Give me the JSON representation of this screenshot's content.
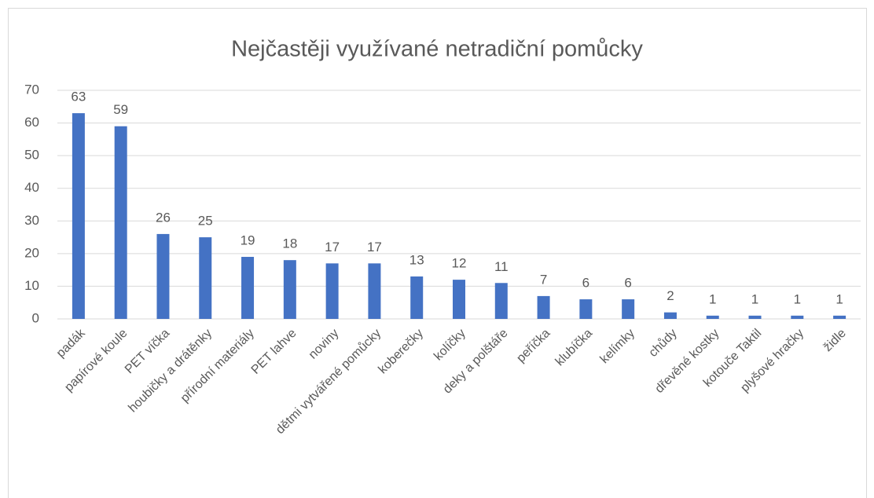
{
  "chart_data": {
    "type": "bar",
    "title": "Nejčastěji využívané netradiční pomůcky",
    "categories": [
      "padák",
      "papírové koule",
      "PET víčka",
      "houbičky a drátěnky",
      "přírodní materiály",
      "PET lahve",
      "noviny",
      "dětmi vytvářené pomůcky",
      "koberečky",
      "kolíčky",
      "deky a polštáře",
      "peříčka",
      "klubíčka",
      "kelímky",
      "chůdy",
      "dřevěné kostky",
      "kotouče Taktil",
      "plyšové hračky",
      "židle"
    ],
    "values": [
      63,
      59,
      26,
      25,
      19,
      18,
      17,
      17,
      13,
      12,
      11,
      7,
      6,
      6,
      2,
      1,
      1,
      1,
      1
    ],
    "color": "#4472c4",
    "ylim": [
      0,
      70
    ],
    "yticks": [
      0,
      10,
      20,
      30,
      40,
      50,
      60,
      70
    ],
    "grid": true
  }
}
